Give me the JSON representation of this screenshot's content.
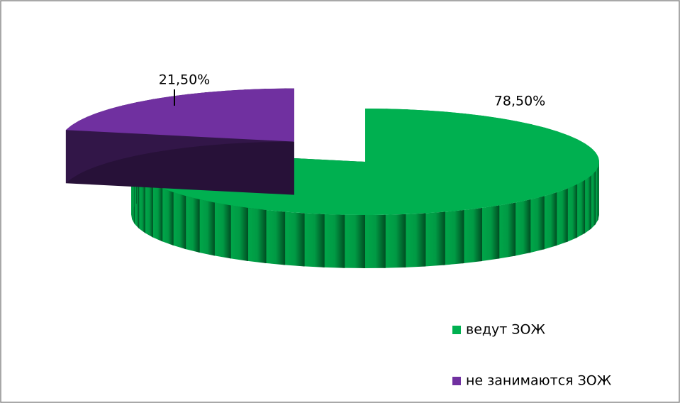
{
  "chart_data": {
    "type": "pie3d",
    "categories": [
      "ведут ЗОЖ",
      "не занимаются ЗОЖ"
    ],
    "values": [
      78.5,
      21.5
    ],
    "value_labels": [
      "78,50%",
      "21,50%"
    ],
    "colors": [
      "#00b050",
      "#7030a0"
    ],
    "legend": "right"
  }
}
